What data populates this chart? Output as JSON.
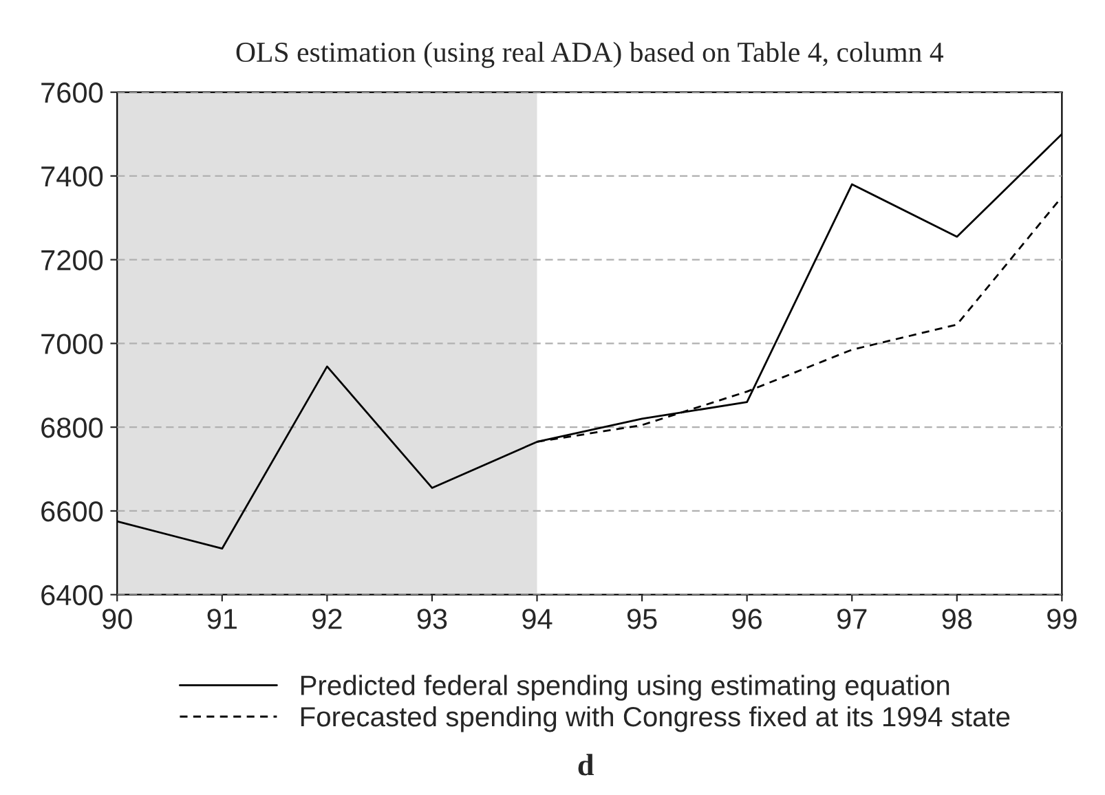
{
  "chart_data": {
    "type": "line",
    "title": "OLS estimation (using real ADA) based on Table 4, column 4",
    "x": [
      90,
      91,
      92,
      93,
      94,
      95,
      96,
      97,
      98,
      99
    ],
    "series": [
      {
        "name": "Predicted federal spending using estimating equation",
        "color": "#000000",
        "line_style": "solid",
        "values": [
          6575,
          6510,
          6945,
          6655,
          6765,
          6820,
          6860,
          7380,
          7255,
          7500
        ]
      },
      {
        "name": "Forecasted spending with Congress fixed at its 1994 state",
        "color": "#000000",
        "line_style": "dashed",
        "values": [
          null,
          null,
          null,
          null,
          6765,
          6805,
          6885,
          6985,
          7045,
          7350
        ]
      }
    ],
    "xlim": [
      90,
      99
    ],
    "xticks": [
      90,
      91,
      92,
      93,
      94,
      95,
      96,
      97,
      98,
      99
    ],
    "ylim": [
      6400,
      7600
    ],
    "yticks": [
      6400,
      6600,
      6800,
      7000,
      7200,
      7400,
      7600
    ],
    "bands": [
      {
        "axis": "x",
        "from": 90,
        "to": 94,
        "color": "#e0e0e0"
      }
    ],
    "grid": "y",
    "legend": "bottom",
    "marker": "none",
    "annotations": [
      "d"
    ]
  }
}
